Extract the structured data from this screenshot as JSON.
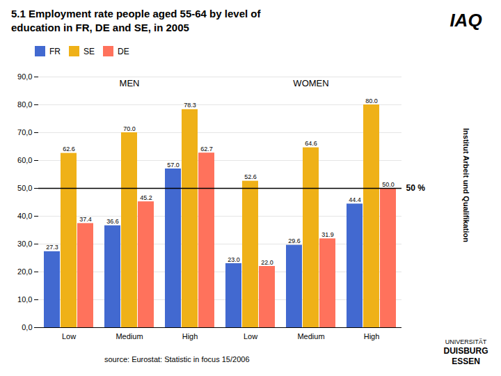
{
  "chart_data": {
    "type": "bar",
    "title": "5.1 Employment rate people aged 55-64 by level of\neducation in FR, DE and SE, in 2005",
    "categories": [
      "Low",
      "Medium",
      "High",
      "Low",
      "Medium",
      "High"
    ],
    "series": [
      {
        "name": "FR",
        "values": [
          27.3,
          36.6,
          57.0,
          23.0,
          29.6,
          44.4
        ],
        "value_labels": [
          "27.3",
          "36.6",
          "57.0",
          "23.0",
          "29.6",
          "44.4"
        ]
      },
      {
        "name": "SE",
        "values": [
          62.6,
          70.0,
          78.3,
          52.6,
          64.6,
          80.0
        ],
        "value_labels": [
          "62.6",
          "70.0",
          "78.3",
          "52.6",
          "64.6",
          "80.0"
        ]
      },
      {
        "name": "DE",
        "values": [
          37.4,
          45.2,
          62.7,
          22.0,
          31.9,
          50.0
        ],
        "value_labels": [
          "37.4",
          "45.2",
          "62.7",
          "22.0",
          "31.9",
          "50.0"
        ]
      }
    ],
    "ylim": [
      0,
      90
    ],
    "yticks": [
      {
        "value": 0,
        "label": "0,0"
      },
      {
        "value": 10,
        "label": "10,0"
      },
      {
        "value": 20,
        "label": "20,0"
      },
      {
        "value": 30,
        "label": "30,0"
      },
      {
        "value": 40,
        "label": "40,0"
      },
      {
        "value": 50,
        "label": "50,0"
      },
      {
        "value": 60,
        "label": "60,0"
      },
      {
        "value": 70,
        "label": "70,0"
      },
      {
        "value": 80,
        "label": "80,0"
      },
      {
        "value": 90,
        "label": "90,0"
      }
    ],
    "grid": true,
    "legend": "top",
    "data_labels": true,
    "section_labels": [
      "MEN",
      "WOMEN"
    ],
    "hline": {
      "y": 50,
      "label": "50 %"
    },
    "source": "source: Eurostat: Statistic in focus 15/2006",
    "logo_texts": [
      "IAQ",
      "Institut Arbeit und Qualifikation",
      "UNIVERSITÄT",
      "DUISBURG",
      "ESSEN"
    ]
  }
}
